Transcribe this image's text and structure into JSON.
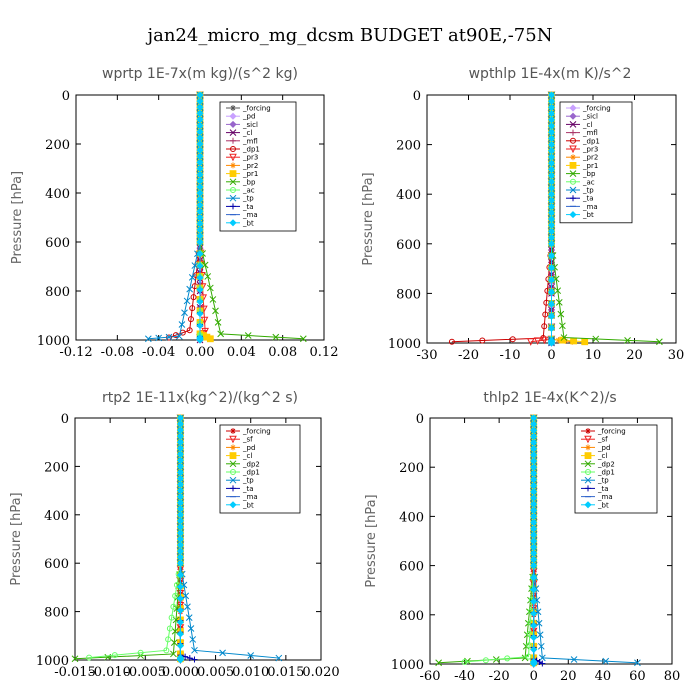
{
  "figure_title": "jan24_micro_mg_dcsm  BUDGET at90E,-75N",
  "chart_data": [
    {
      "type": "line",
      "title": "wprtp   1E-7x(m kg)/(s^2 kg)",
      "ylabel": "Pressure [hPa]",
      "xlim": [
        -0.12,
        0.12
      ],
      "ylim": [
        1000,
        0
      ],
      "x_ticks": [
        "-0.12",
        "-0.08",
        "-0.04",
        "0.00",
        "0.04",
        "0.08",
        "0.12"
      ],
      "y_ticks": [
        "0",
        "200",
        "400",
        "600",
        "800",
        "1000"
      ],
      "legend_position": "top-right",
      "series": [
        {
          "name": "_forcing",
          "color": "#555555",
          "marker": "star",
          "x": [
            0,
            0,
            0,
            0,
            0,
            0
          ],
          "y": [
            0,
            200,
            400,
            600,
            800,
            1000
          ]
        },
        {
          "name": "_pd",
          "color": "#c8a0ff",
          "marker": "diamond",
          "x": [
            0,
            0,
            0,
            0,
            0,
            0
          ],
          "y": [
            0,
            200,
            400,
            600,
            800,
            1000
          ]
        },
        {
          "name": "_sicl",
          "color": "#9966cc",
          "marker": "diamond",
          "x": [
            0,
            0,
            0,
            0,
            0,
            0
          ],
          "y": [
            0,
            200,
            400,
            600,
            800,
            1000
          ]
        },
        {
          "name": "_cl",
          "color": "#660066",
          "marker": "x",
          "x": [
            0,
            0,
            0,
            0,
            0,
            0
          ],
          "y": [
            0,
            200,
            400,
            600,
            800,
            1000
          ]
        },
        {
          "name": "_mfl",
          "color": "#aa3366",
          "marker": "plus",
          "x": [
            0,
            0,
            0,
            0,
            0,
            0
          ],
          "y": [
            0,
            200,
            400,
            600,
            800,
            1000
          ]
        },
        {
          "name": "_dp1",
          "color": "#cc0000",
          "marker": "circle",
          "x": [
            0,
            0,
            0,
            0,
            -0.01,
            -0.03
          ],
          "y": [
            0,
            200,
            400,
            600,
            960,
            990
          ]
        },
        {
          "name": "_pr3",
          "color": "#ee2222",
          "marker": "triangle",
          "x": [
            0,
            0,
            0,
            0,
            0.005,
            0
          ],
          "y": [
            0,
            200,
            400,
            600,
            965,
            990
          ]
        },
        {
          "name": "_pr2",
          "color": "#ff8800",
          "marker": "star",
          "x": [
            0,
            0,
            0,
            0,
            0,
            0.01
          ],
          "y": [
            0,
            200,
            400,
            600,
            970,
            995
          ]
        },
        {
          "name": "_pr1",
          "color": "#ffcc00",
          "marker": "square",
          "x": [
            0,
            0,
            0,
            0,
            0,
            0.01
          ],
          "y": [
            0,
            200,
            400,
            600,
            975,
            995
          ]
        },
        {
          "name": "_bp",
          "color": "#33aa00",
          "marker": "x",
          "x": [
            0,
            0,
            0,
            0,
            0.02,
            0.1
          ],
          "y": [
            0,
            200,
            400,
            600,
            975,
            995
          ]
        },
        {
          "name": "_ac",
          "color": "#66ff66",
          "marker": "circle",
          "x": [
            0,
            0,
            0,
            0,
            0,
            0
          ],
          "y": [
            0,
            200,
            400,
            600,
            980,
            995
          ]
        },
        {
          "name": "_tp",
          "color": "#0088cc",
          "marker": "x",
          "x": [
            0,
            0,
            0,
            0,
            -0.02,
            -0.05
          ],
          "y": [
            0,
            200,
            400,
            600,
            985,
            995
          ]
        },
        {
          "name": "_ta",
          "color": "#0000aa",
          "marker": "plus",
          "x": [
            0,
            0,
            0,
            0,
            0,
            0
          ],
          "y": [
            0,
            200,
            400,
            600,
            985,
            995
          ]
        },
        {
          "name": "_ma",
          "color": "#3366cc",
          "marker": "dash",
          "x": [
            0,
            0,
            0,
            0,
            0,
            0
          ],
          "y": [
            0,
            200,
            400,
            600,
            990,
            1000
          ]
        },
        {
          "name": "_bt",
          "color": "#00ccff",
          "marker": "diamond",
          "x": [
            0,
            0,
            0,
            0,
            0,
            0
          ],
          "y": [
            0,
            200,
            400,
            600,
            990,
            1000
          ]
        }
      ]
    },
    {
      "type": "line",
      "title": "wpthlp   1E-4x(m K)/s^2",
      "ylabel": "Pressure [hPa]",
      "xlim": [
        -30,
        30
      ],
      "ylim": [
        1000,
        0
      ],
      "x_ticks": [
        "-30",
        "-20",
        "-10",
        "0",
        "10",
        "20",
        "30"
      ],
      "y_ticks": [
        "0",
        "200",
        "400",
        "600",
        "800",
        "1000"
      ],
      "legend_position": "top-right",
      "series": [
        {
          "name": "_forcing",
          "color": "#c8a0ff",
          "marker": "diamond",
          "x": [
            0,
            0,
            0,
            0,
            0,
            0
          ],
          "y": [
            0,
            200,
            400,
            600,
            800,
            1000
          ]
        },
        {
          "name": "_sicl",
          "color": "#9966cc",
          "marker": "diamond",
          "x": [
            0,
            0,
            0,
            0,
            0,
            0
          ],
          "y": [
            0,
            200,
            400,
            600,
            800,
            1000
          ]
        },
        {
          "name": "_cl",
          "color": "#660066",
          "marker": "x",
          "x": [
            0,
            0,
            0,
            0,
            0,
            0
          ],
          "y": [
            0,
            200,
            400,
            600,
            800,
            1000
          ]
        },
        {
          "name": "_mfl",
          "color": "#aa3366",
          "marker": "plus",
          "x": [
            0,
            0,
            0,
            0,
            0,
            0
          ],
          "y": [
            0,
            200,
            400,
            600,
            800,
            1000
          ]
        },
        {
          "name": "_dp1",
          "color": "#cc0000",
          "marker": "circle",
          "x": [
            0,
            0,
            0,
            0,
            -2,
            -24
          ],
          "y": [
            0,
            200,
            400,
            600,
            980,
            995
          ]
        },
        {
          "name": "_pr3",
          "color": "#ee2222",
          "marker": "triangle",
          "x": [
            0,
            0,
            0,
            0,
            0,
            -5
          ],
          "y": [
            0,
            200,
            400,
            600,
            985,
            995
          ]
        },
        {
          "name": "_pr2",
          "color": "#ff8800",
          "marker": "star",
          "x": [
            0,
            0,
            0,
            0,
            0,
            5
          ],
          "y": [
            0,
            200,
            400,
            600,
            985,
            995
          ]
        },
        {
          "name": "_pr1",
          "color": "#ffcc00",
          "marker": "square",
          "x": [
            0,
            0,
            0,
            0,
            0,
            8
          ],
          "y": [
            0,
            200,
            400,
            600,
            985,
            995
          ]
        },
        {
          "name": "_bp",
          "color": "#33aa00",
          "marker": "x",
          "x": [
            0,
            0,
            0,
            0,
            3,
            26
          ],
          "y": [
            0,
            200,
            400,
            600,
            978,
            995
          ]
        },
        {
          "name": "_ac",
          "color": "#66ff66",
          "marker": "circle",
          "x": [
            0,
            0,
            0,
            0,
            0,
            0
          ],
          "y": [
            0,
            200,
            400,
            600,
            985,
            998
          ]
        },
        {
          "name": "_tp",
          "color": "#0088cc",
          "marker": "x",
          "x": [
            0,
            0,
            0,
            0,
            0,
            0
          ],
          "y": [
            0,
            200,
            400,
            600,
            985,
            998
          ]
        },
        {
          "name": "_ta",
          "color": "#0000aa",
          "marker": "plus",
          "x": [
            0,
            0,
            0,
            0,
            0,
            0
          ],
          "y": [
            0,
            200,
            400,
            600,
            985,
            998
          ]
        },
        {
          "name": "_ma",
          "color": "#3366cc",
          "marker": "dash",
          "x": [
            0,
            0,
            0,
            0,
            0,
            0
          ],
          "y": [
            0,
            200,
            400,
            600,
            990,
            1000
          ]
        },
        {
          "name": "_bt",
          "color": "#00ccff",
          "marker": "diamond",
          "x": [
            0,
            0,
            0,
            0,
            0,
            0
          ],
          "y": [
            0,
            200,
            400,
            600,
            990,
            1000
          ]
        }
      ]
    },
    {
      "type": "line",
      "title": "rtp2   1E-11x(kg^2)/(kg^2 s)",
      "ylabel": "Pressure [hPa]",
      "xlim": [
        -0.015,
        0.02
      ],
      "ylim": [
        1000,
        0
      ],
      "x_ticks": [
        "-0.015",
        "-0.010",
        "-0.005",
        "0.000",
        "0.005",
        "0.010",
        "0.015",
        "0.020"
      ],
      "y_ticks": [
        "0",
        "200",
        "400",
        "600",
        "800",
        "1000"
      ],
      "legend_position": "top-right",
      "series": [
        {
          "name": "_forcing",
          "color": "#cc0000",
          "marker": "star",
          "x": [
            0,
            0,
            0,
            0,
            0,
            0
          ],
          "y": [
            0,
            200,
            400,
            600,
            800,
            1000
          ]
        },
        {
          "name": "_sf",
          "color": "#ee2222",
          "marker": "triangle",
          "x": [
            0,
            0,
            0,
            0,
            0,
            0
          ],
          "y": [
            0,
            200,
            400,
            600,
            800,
            1000
          ]
        },
        {
          "name": "_pd",
          "color": "#ff8800",
          "marker": "star",
          "x": [
            0,
            0,
            0,
            0,
            0,
            0
          ],
          "y": [
            0,
            200,
            400,
            600,
            970,
            995
          ]
        },
        {
          "name": "_cl",
          "color": "#ffcc00",
          "marker": "square",
          "x": [
            0,
            0,
            0,
            0,
            0,
            0
          ],
          "y": [
            0,
            200,
            400,
            600,
            975,
            995
          ]
        },
        {
          "name": "_dp2",
          "color": "#33aa00",
          "marker": "x",
          "x": [
            0,
            0,
            0,
            0,
            -0.001,
            -0.015
          ],
          "y": [
            0,
            200,
            400,
            600,
            975,
            995
          ]
        },
        {
          "name": "_dp1",
          "color": "#66ff66",
          "marker": "circle",
          "x": [
            0,
            0,
            0,
            0,
            -0.002,
            -0.013
          ],
          "y": [
            0,
            200,
            400,
            600,
            960,
            990
          ]
        },
        {
          "name": "_tp",
          "color": "#0088cc",
          "marker": "x",
          "x": [
            0,
            0,
            0,
            0,
            0.002,
            0.014
          ],
          "y": [
            0,
            200,
            400,
            600,
            960,
            992
          ]
        },
        {
          "name": "_ta",
          "color": "#0000aa",
          "marker": "plus",
          "x": [
            0,
            0,
            0,
            0,
            0,
            0.002
          ],
          "y": [
            0,
            200,
            400,
            600,
            980,
            998
          ]
        },
        {
          "name": "_ma",
          "color": "#3366cc",
          "marker": "dash",
          "x": [
            0,
            0,
            0,
            0,
            0,
            0
          ],
          "y": [
            0,
            200,
            400,
            600,
            990,
            1000
          ]
        },
        {
          "name": "_bt",
          "color": "#00ccff",
          "marker": "diamond",
          "x": [
            0,
            0,
            0,
            0,
            0,
            0
          ],
          "y": [
            0,
            200,
            400,
            600,
            990,
            1000
          ]
        }
      ]
    },
    {
      "type": "line",
      "title": "thlp2   1E-4x(K^2)/s",
      "ylabel": "Pressure [hPa]",
      "xlim": [
        -60,
        80
      ],
      "ylim": [
        1000,
        0
      ],
      "x_ticks": [
        "-60",
        "-40",
        "-20",
        "0",
        "20",
        "40",
        "60",
        "80"
      ],
      "y_ticks": [
        "0",
        "200",
        "400",
        "600",
        "800",
        "1000"
      ],
      "legend_position": "top-right",
      "series": [
        {
          "name": "_forcing",
          "color": "#cc0000",
          "marker": "star",
          "x": [
            0,
            0,
            0,
            0,
            0,
            0
          ],
          "y": [
            0,
            200,
            400,
            600,
            800,
            1000
          ]
        },
        {
          "name": "_sf",
          "color": "#ee2222",
          "marker": "triangle",
          "x": [
            0,
            0,
            0,
            0,
            0,
            0
          ],
          "y": [
            0,
            200,
            400,
            600,
            800,
            1000
          ]
        },
        {
          "name": "_pd",
          "color": "#ff8800",
          "marker": "star",
          "x": [
            0,
            0,
            0,
            0,
            0,
            0
          ],
          "y": [
            0,
            200,
            400,
            600,
            970,
            995
          ]
        },
        {
          "name": "_cl",
          "color": "#ffcc00",
          "marker": "square",
          "x": [
            0,
            0,
            0,
            0,
            0,
            0
          ],
          "y": [
            0,
            200,
            400,
            600,
            975,
            995
          ]
        },
        {
          "name": "_dp2",
          "color": "#33aa00",
          "marker": "x",
          "x": [
            0,
            0,
            0,
            0,
            -5,
            -55
          ],
          "y": [
            0,
            200,
            400,
            600,
            975,
            995
          ]
        },
        {
          "name": "_dp1",
          "color": "#66ff66",
          "marker": "circle",
          "x": [
            0,
            0,
            0,
            0,
            -3,
            -40
          ],
          "y": [
            0,
            200,
            400,
            600,
            970,
            992
          ]
        },
        {
          "name": "_tp",
          "color": "#0088cc",
          "marker": "x",
          "x": [
            0,
            0,
            0,
            0,
            5,
            60
          ],
          "y": [
            0,
            200,
            400,
            600,
            975,
            995
          ]
        },
        {
          "name": "_ta",
          "color": "#0000aa",
          "marker": "plus",
          "x": [
            0,
            0,
            0,
            0,
            0,
            5
          ],
          "y": [
            0,
            200,
            400,
            600,
            980,
            998
          ]
        },
        {
          "name": "_ma",
          "color": "#3366cc",
          "marker": "dash",
          "x": [
            0,
            0,
            0,
            0,
            0,
            0
          ],
          "y": [
            0,
            200,
            400,
            600,
            990,
            1000
          ]
        },
        {
          "name": "_bt",
          "color": "#00ccff",
          "marker": "diamond",
          "x": [
            0,
            0,
            0,
            0,
            0,
            0
          ],
          "y": [
            0,
            200,
            400,
            600,
            990,
            1000
          ]
        }
      ]
    }
  ]
}
